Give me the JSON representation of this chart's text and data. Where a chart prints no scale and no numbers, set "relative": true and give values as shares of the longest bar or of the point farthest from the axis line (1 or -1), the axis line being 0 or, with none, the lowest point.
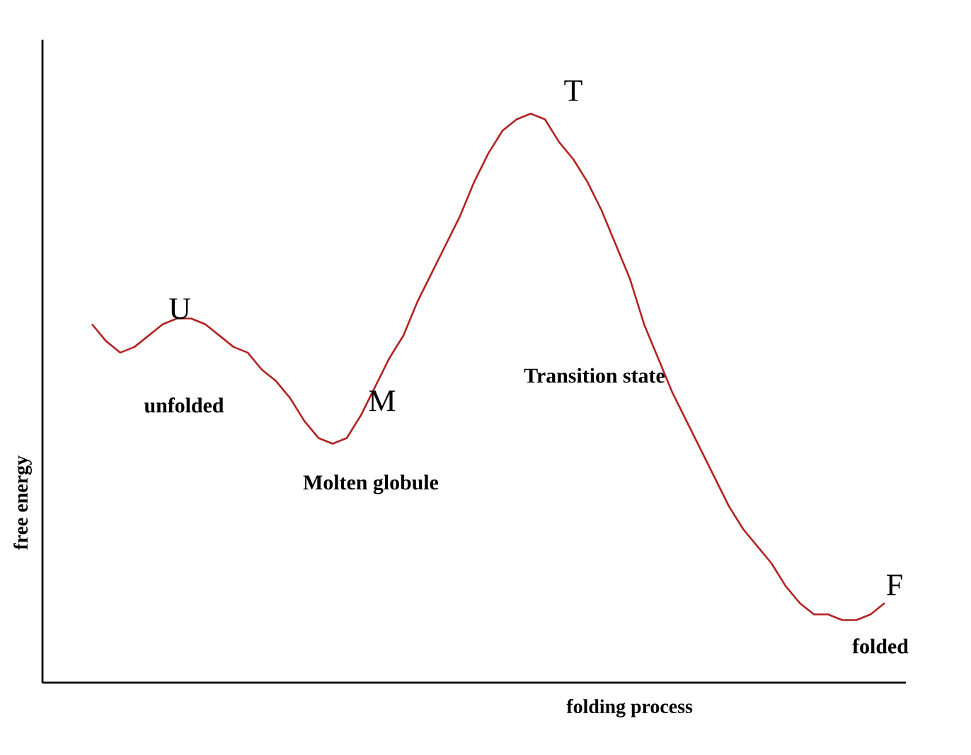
{
  "chart_data": {
    "type": "line",
    "relative": true,
    "xlabel": "folding process",
    "ylabel": "free energy",
    "categories": [
      null,
      null,
      null,
      null,
      null,
      null,
      null,
      null,
      null,
      null,
      null,
      null,
      null,
      null,
      null,
      null,
      null,
      null,
      null,
      null,
      null,
      null,
      null,
      null,
      null,
      null,
      null,
      null,
      null,
      null,
      null,
      null,
      null,
      null,
      null,
      null,
      null,
      null,
      null,
      null,
      null,
      null,
      null,
      null,
      null,
      null,
      null,
      null,
      null,
      null,
      null,
      null,
      null,
      null,
      null,
      null,
      null
    ],
    "series": [
      {
        "color": "#b22222",
        "values": [
          0.63,
          0.6,
          0.58,
          0.59,
          0.61,
          0.63,
          0.64,
          0.64,
          0.63,
          0.61,
          0.59,
          0.58,
          0.55,
          0.53,
          0.5,
          0.46,
          0.43,
          0.42,
          0.43,
          0.47,
          0.52,
          0.57,
          0.61,
          0.67,
          0.72,
          0.77,
          0.82,
          0.88,
          0.93,
          0.97,
          0.99,
          1.0,
          0.99,
          0.95,
          0.92,
          0.88,
          0.83,
          0.77,
          0.71,
          0.63,
          0.57,
          0.51,
          0.46,
          0.41,
          0.36,
          0.31,
          0.27,
          0.24,
          0.21,
          0.17,
          0.14,
          0.12,
          0.12,
          0.11,
          0.11,
          0.12,
          0.14
        ]
      }
    ],
    "annotations": [
      "U",
      "unfolded",
      "M",
      "Molten globule",
      "T",
      "Transition state",
      "F",
      "folded"
    ],
    "marker": "none",
    "line_style": "solid"
  }
}
